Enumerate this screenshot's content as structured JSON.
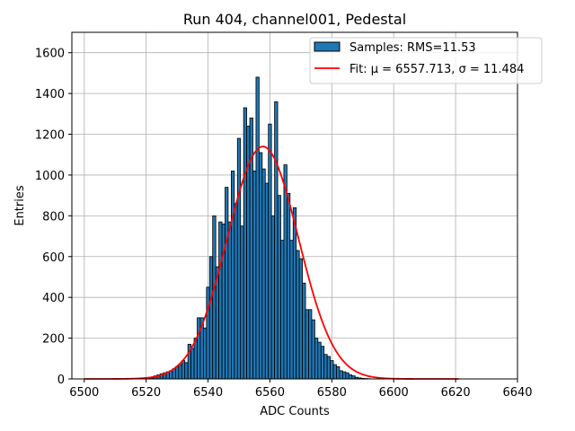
{
  "chart_data": {
    "type": "bar",
    "title": "Run 404, channel001, Pedestal",
    "xlabel": "ADC Counts",
    "ylabel": "Entries",
    "xlim": [
      6496,
      6640
    ],
    "ylim": [
      0,
      1700
    ],
    "xticks": [
      6500,
      6520,
      6540,
      6560,
      6580,
      6600,
      6620,
      6640
    ],
    "yticks": [
      0,
      200,
      400,
      600,
      800,
      1000,
      1200,
      1400,
      1600
    ],
    "grid": true,
    "legend_position": "top-right",
    "histogram": {
      "name": "Samples: RMS=11.53",
      "color": "#1f77b4",
      "edgecolor": "#000000",
      "bin_width": 1,
      "x": [
        6521,
        6522,
        6523,
        6524,
        6525,
        6526,
        6527,
        6528,
        6529,
        6530,
        6531,
        6532,
        6533,
        6534,
        6535,
        6536,
        6537,
        6538,
        6539,
        6540,
        6541,
        6542,
        6543,
        6544,
        6545,
        6546,
        6547,
        6548,
        6549,
        6550,
        6551,
        6552,
        6553,
        6554,
        6555,
        6556,
        6557,
        6558,
        6559,
        6560,
        6561,
        6562,
        6563,
        6564,
        6565,
        6566,
        6567,
        6568,
        6569,
        6570,
        6571,
        6572,
        6573,
        6574,
        6575,
        6576,
        6577,
        6578,
        6579,
        6580,
        6581,
        6582,
        6583,
        6584,
        6585,
        6586,
        6587,
        6588,
        6589,
        6590,
        6591,
        6592
      ],
      "values": [
        5,
        5,
        15,
        20,
        25,
        30,
        35,
        40,
        50,
        60,
        70,
        90,
        80,
        170,
        150,
        200,
        300,
        300,
        250,
        450,
        600,
        800,
        550,
        770,
        760,
        940,
        770,
        1020,
        860,
        1180,
        750,
        1330,
        1240,
        1280,
        1020,
        1480,
        1110,
        1030,
        960,
        1250,
        800,
        1360,
        900,
        680,
        1050,
        910,
        680,
        840,
        630,
        590,
        470,
        340,
        340,
        290,
        200,
        180,
        160,
        120,
        110,
        90,
        70,
        60,
        40,
        35,
        30,
        20,
        15,
        8,
        5,
        3,
        2,
        1
      ]
    },
    "fit": {
      "name": "Fit: μ = 6557.713, σ = 11.484",
      "color": "#ff0000",
      "mu": 6557.713,
      "sigma": 11.484,
      "amplitude": 1140,
      "x_range": [
        6500,
        6621
      ]
    }
  }
}
